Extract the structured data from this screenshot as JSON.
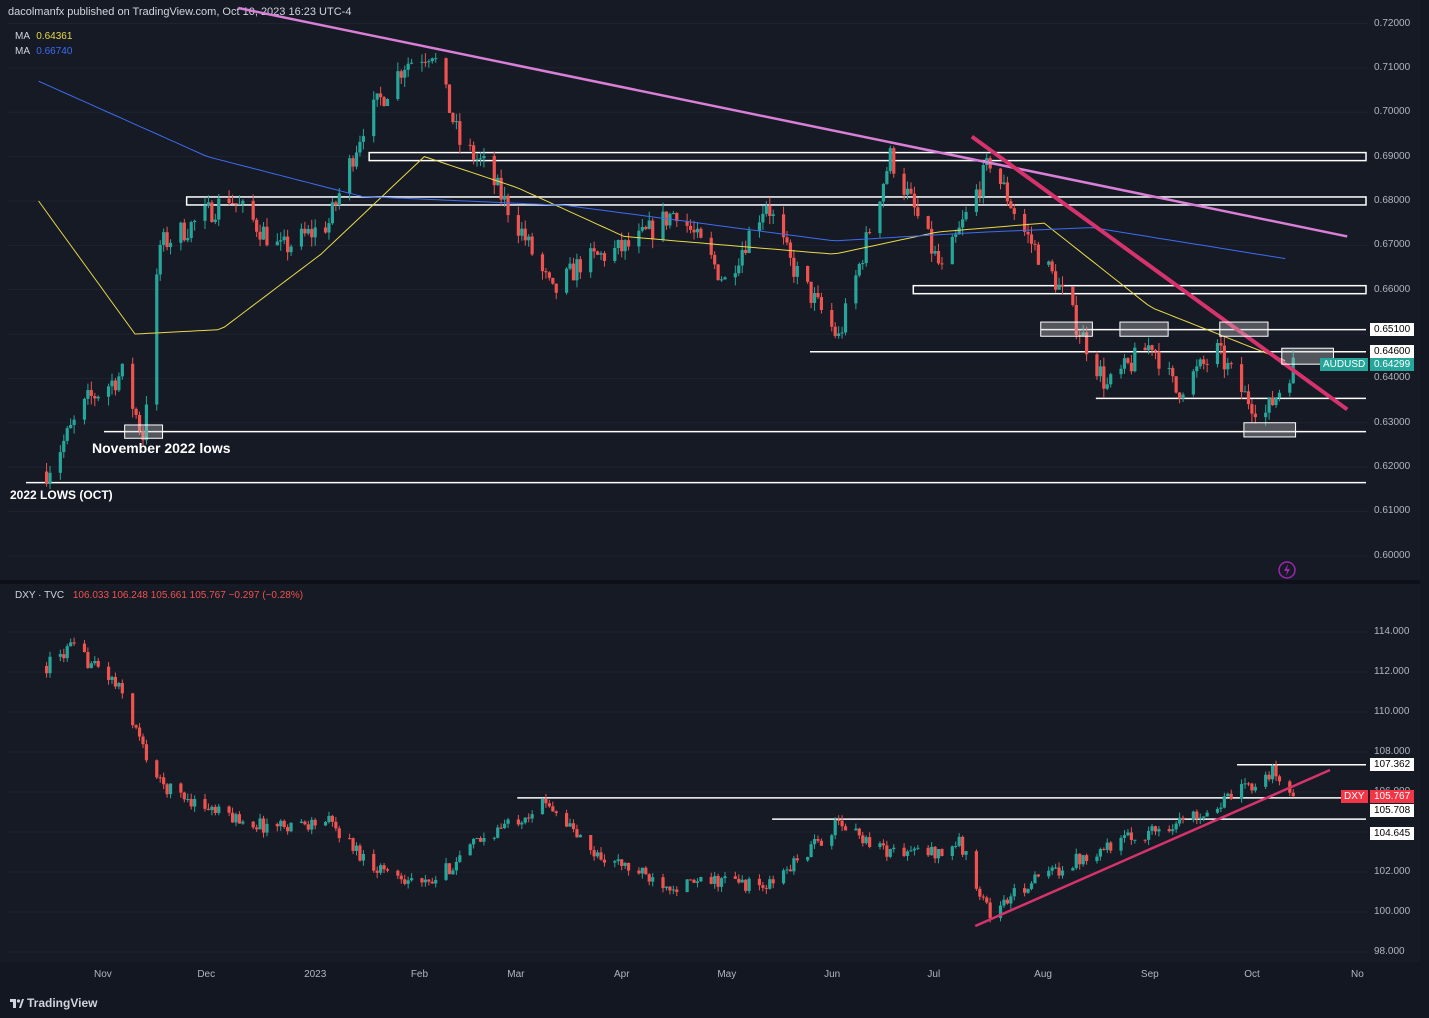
{
  "header": {
    "publisher_text": "dacolmanfx published on TradingView.com, Oct 10, 2023 16:23 UTC-4"
  },
  "top_pane": {
    "ma_rows": [
      {
        "label": "MA",
        "value": "0.64361",
        "color": "#e8d94a"
      },
      {
        "label": "MA",
        "value": "0.66740",
        "color": "#3d6cf0"
      }
    ],
    "y_ticks": [
      "0.72000",
      "0.71000",
      "0.70000",
      "0.69000",
      "0.68000",
      "0.67000",
      "0.66000",
      "0.65000",
      "0.64000",
      "0.63000",
      "0.62000",
      "0.61000",
      "0.60000"
    ],
    "price_badges": [
      {
        "text": "0.65100",
        "value": 0.651,
        "bg": "#ffffff",
        "fg": "#000000"
      },
      {
        "text": "0.64600",
        "value": 0.646,
        "bg": "#ffffff",
        "fg": "#000000"
      },
      {
        "symbol": "AUDUSD",
        "text": "0.64299",
        "value": 0.64299,
        "bg": "#26a69a",
        "fg": "#ffffff"
      }
    ],
    "annotations": {
      "nov_lows": "November 2022 lows",
      "lows_2022": "2022 LOWS (OCT)"
    }
  },
  "bottom_pane": {
    "title_prefix": "DXY · TVC",
    "ohlc": "106.033  106.248  105.661  105.767  −0.297 (−0.28%)",
    "y_ticks": [
      "114.000",
      "112.000",
      "110.000",
      "108.000",
      "106.000",
      "104.000",
      "102.000",
      "100.000",
      "98.000"
    ],
    "price_badges": [
      {
        "text": "107.362",
        "value": 107.362,
        "bg": "#ffffff",
        "fg": "#000000"
      },
      {
        "symbol": "DXY",
        "text": "105.767",
        "value": 105.767,
        "bg": "#f23645",
        "fg": "#ffffff"
      },
      {
        "text": "105.708",
        "value": 105.708,
        "bg": "#ffffff",
        "fg": "#000000"
      },
      {
        "text": "104.645",
        "value": 104.645,
        "bg": "#ffffff",
        "fg": "#000000"
      }
    ]
  },
  "x_axis": [
    "Nov",
    "Dec",
    "2023",
    "Feb",
    "Mar",
    "Apr",
    "May",
    "Jun",
    "Jul",
    "Aug",
    "Sep",
    "Oct",
    "No"
  ],
  "footer": {
    "brand": "TradingView"
  },
  "colors": {
    "up": "#26a69a",
    "down": "#ef5350",
    "ma50": "#e8d94a",
    "ma200": "#3d6cf0",
    "trend_long": "#d97fd6",
    "trend_short": "#d6336c"
  },
  "chart_data": [
    {
      "type": "candlestick",
      "symbol": "AUDUSD",
      "ylim": [
        0.595,
        0.7235
      ],
      "x_ticks": [
        "Nov",
        "Dec",
        "2023",
        "Feb",
        "Mar",
        "Apr",
        "May",
        "Jun",
        "Jul",
        "Aug",
        "Sep",
        "Oct",
        "No"
      ],
      "close_path": [
        [
          "2022-10-13",
          0.619
        ],
        [
          "2022-10-25",
          0.635
        ],
        [
          "2022-11-04",
          0.641
        ],
        [
          "2022-11-10",
          0.627
        ],
        [
          "2022-11-15",
          0.67
        ],
        [
          "2022-11-25",
          0.675
        ],
        [
          "2022-12-05",
          0.681
        ],
        [
          "2022-12-20",
          0.669
        ],
        [
          "2023-01-03",
          0.675
        ],
        [
          "2023-01-13",
          0.697
        ],
        [
          "2023-01-25",
          0.711
        ],
        [
          "2023-02-02",
          0.714
        ],
        [
          "2023-02-10",
          0.693
        ],
        [
          "2023-02-17",
          0.688
        ],
        [
          "2023-02-28",
          0.673
        ],
        [
          "2023-03-09",
          0.659
        ],
        [
          "2023-03-17",
          0.666
        ],
        [
          "2023-04-01",
          0.67
        ],
        [
          "2023-04-14",
          0.678
        ],
        [
          "2023-04-28",
          0.662
        ],
        [
          "2023-05-10",
          0.68
        ],
        [
          "2023-05-17",
          0.666
        ],
        [
          "2023-05-31",
          0.649
        ],
        [
          "2023-06-15",
          0.69
        ],
        [
          "2023-06-30",
          0.664
        ],
        [
          "2023-07-14",
          0.689
        ],
        [
          "2023-07-24",
          0.673
        ],
        [
          "2023-08-02",
          0.662
        ],
        [
          "2023-08-17",
          0.638
        ],
        [
          "2023-08-30",
          0.648
        ],
        [
          "2023-09-06",
          0.637
        ],
        [
          "2023-09-18",
          0.646
        ],
        [
          "2023-09-26",
          0.636
        ],
        [
          "2023-10-02",
          0.632
        ],
        [
          "2023-10-10",
          0.643
        ]
      ],
      "ma_50_path": [
        [
          "2022-10-13",
          0.68
        ],
        [
          "2022-11-10",
          0.65
        ],
        [
          "2022-12-05",
          0.651
        ],
        [
          "2023-01-03",
          0.668
        ],
        [
          "2023-02-02",
          0.69
        ],
        [
          "2023-03-01",
          0.683
        ],
        [
          "2023-04-01",
          0.672
        ],
        [
          "2023-05-01",
          0.67
        ],
        [
          "2023-06-01",
          0.668
        ],
        [
          "2023-07-01",
          0.673
        ],
        [
          "2023-08-01",
          0.675
        ],
        [
          "2023-09-01",
          0.656
        ],
        [
          "2023-10-10",
          0.644
        ]
      ],
      "ma_200_path": [
        [
          "2022-10-13",
          0.707
        ],
        [
          "2022-12-01",
          0.69
        ],
        [
          "2023-01-15",
          0.681
        ],
        [
          "2023-03-15",
          0.679
        ],
        [
          "2023-06-01",
          0.671
        ],
        [
          "2023-07-15",
          0.673
        ],
        [
          "2023-08-15",
          0.674
        ],
        [
          "2023-10-10",
          0.667
        ]
      ],
      "horizontal_levels": [
        0.69,
        0.68,
        0.66,
        0.651,
        0.646,
        0.6355,
        0.628,
        0.6165
      ],
      "trendlines": [
        {
          "from": [
            "2022-12-10",
            0.7235
          ],
          "to": [
            "2023-10-28",
            0.672
          ]
        },
        {
          "from": [
            "2023-07-11",
            0.6945
          ],
          "to": [
            "2023-10-28",
            0.633
          ]
        }
      ]
    },
    {
      "type": "candlestick",
      "symbol": "DXY",
      "ylim": [
        97.6,
        115.8
      ],
      "x_ticks": [
        "Nov",
        "Dec",
        "2023",
        "Feb",
        "Mar",
        "Apr",
        "May",
        "Jun",
        "Jul",
        "Aug",
        "Sep",
        "Oct",
        "No"
      ],
      "close_path": [
        [
          "2022-10-13",
          112.3
        ],
        [
          "2022-10-20",
          113.2
        ],
        [
          "2022-10-31",
          111.8
        ],
        [
          "2022-11-04",
          110.9
        ],
        [
          "2022-11-10",
          108.2
        ],
        [
          "2022-11-15",
          106.4
        ],
        [
          "2022-12-01",
          105.0
        ],
        [
          "2022-12-15",
          104.3
        ],
        [
          "2023-01-03",
          104.5
        ],
        [
          "2023-01-15",
          102.4
        ],
        [
          "2023-02-01",
          101.3
        ],
        [
          "2023-02-15",
          103.5
        ],
        [
          "2023-03-02",
          105.0
        ],
        [
          "2023-03-08",
          105.5
        ],
        [
          "2023-03-20",
          103.0
        ],
        [
          "2023-04-05",
          101.8
        ],
        [
          "2023-04-14",
          101.3
        ],
        [
          "2023-04-28",
          101.6
        ],
        [
          "2023-05-10",
          101.2
        ],
        [
          "2023-05-31",
          104.4
        ],
        [
          "2023-06-15",
          103.0
        ],
        [
          "2023-06-30",
          103.0
        ],
        [
          "2023-07-05",
          103.5
        ],
        [
          "2023-07-14",
          99.9
        ],
        [
          "2023-07-25",
          101.4
        ],
        [
          "2023-08-15",
          103.2
        ],
        [
          "2023-09-05",
          104.4
        ],
        [
          "2023-09-18",
          105.3
        ],
        [
          "2023-09-29",
          106.5
        ],
        [
          "2023-10-04",
          107.0
        ],
        [
          "2023-10-10",
          105.8
        ]
      ],
      "horizontal_levels": [
        107.362,
        105.708,
        104.645
      ],
      "trendlines": [
        {
          "from": [
            "2023-07-12",
            99.3
          ],
          "to": [
            "2023-10-23",
            107.1
          ]
        }
      ]
    }
  ]
}
